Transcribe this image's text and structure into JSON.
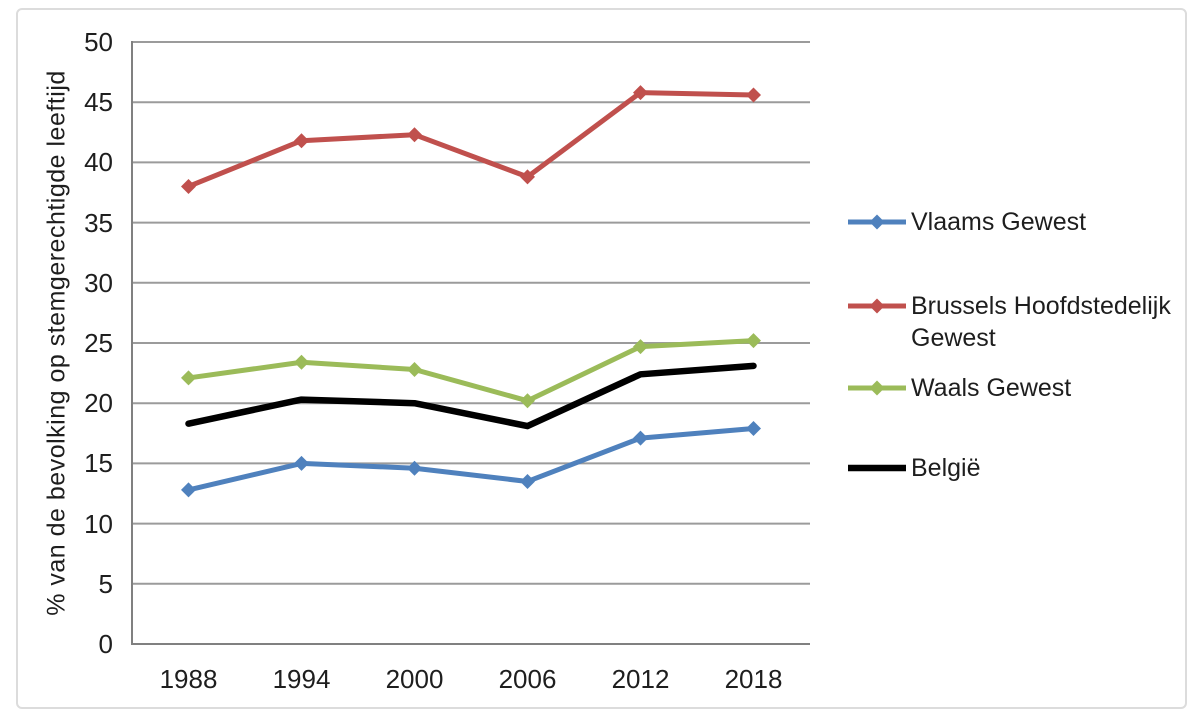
{
  "figure": {
    "background": "#ffffff",
    "border_color": "#dcdcdc"
  },
  "chart_data": {
    "type": "line",
    "title": "",
    "ylabel": "% van de bevolking op stemgerechtigde leeftijd",
    "xlabel": "",
    "categories": [
      "1988",
      "1994",
      "2000",
      "2006",
      "2012",
      "2018"
    ],
    "yticks": [
      "0",
      "5",
      "10",
      "15",
      "20",
      "25",
      "30",
      "35",
      "40",
      "45",
      "50"
    ],
    "ylim": [
      0,
      50
    ],
    "ytick_step": 5,
    "grid": "horizontal",
    "legend_position": "right",
    "series": [
      {
        "name": "Vlaams Gewest",
        "color": "#4F81BD",
        "marker": "diamond",
        "line_width": 5,
        "values": [
          12.8,
          15.0,
          14.6,
          13.5,
          17.1,
          17.9
        ]
      },
      {
        "name": "Brussels Hoofdstedelijk Gewest",
        "color": "#C0504D",
        "marker": "diamond",
        "line_width": 5,
        "values": [
          38.0,
          41.8,
          42.3,
          38.8,
          45.8,
          45.6
        ]
      },
      {
        "name": "Waals Gewest",
        "color": "#9BBB59",
        "marker": "diamond",
        "line_width": 5,
        "values": [
          22.1,
          23.4,
          22.8,
          20.2,
          24.7,
          25.2
        ]
      },
      {
        "name": "België",
        "color": "#000000",
        "marker": "none",
        "line_width": 6.5,
        "values": [
          18.3,
          20.3,
          20.0,
          18.1,
          22.4,
          23.1
        ]
      }
    ],
    "colors": {
      "gridline": "#9b9b9b",
      "axis": "#808080",
      "text": "#1e1e1e"
    }
  }
}
